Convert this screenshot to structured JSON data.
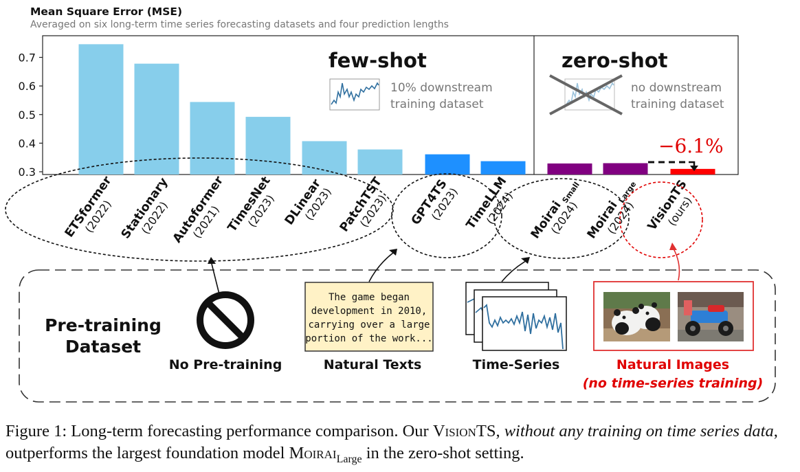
{
  "chart_data": {
    "type": "bar",
    "title": "Mean Square Error (MSE)",
    "subtitle": "Averaged on six long-term time series forecasting datasets and four prediction lengths",
    "ylim": [
      0.3,
      0.75
    ],
    "yticks": [
      "0.3",
      "0.4",
      "0.5",
      "0.6",
      "0.7"
    ],
    "series": [
      {
        "name": "ETSformer",
        "year": "(2022)",
        "value": 0.746,
        "group": "few-shot",
        "color": "#87ceeb"
      },
      {
        "name": "Stationary",
        "year": "(2022)",
        "value": 0.678,
        "group": "few-shot",
        "color": "#87ceeb"
      },
      {
        "name": "Autoformer",
        "year": "(2021)",
        "value": 0.544,
        "group": "few-shot",
        "color": "#87ceeb"
      },
      {
        "name": "TimesNet",
        "year": "(2023)",
        "value": 0.492,
        "group": "few-shot",
        "color": "#87ceeb"
      },
      {
        "name": "DLinear",
        "year": "(2023)",
        "value": 0.407,
        "group": "few-shot",
        "color": "#87ceeb"
      },
      {
        "name": "PatchTST",
        "year": "(2023)",
        "value": 0.378,
        "group": "few-shot",
        "color": "#87ceeb"
      },
      {
        "name": "GPT4TS",
        "year": "(2023)",
        "value": 0.361,
        "group": "few-shot",
        "color": "#1e90ff"
      },
      {
        "name": "TimeLLM",
        "year": "(2024)",
        "value": 0.337,
        "group": "few-shot",
        "color": "#1e90ff"
      },
      {
        "name": "Moirai",
        "sub": "Small",
        "year": "(2024)",
        "value": 0.329,
        "group": "zero-shot",
        "color": "#800080"
      },
      {
        "name": "Moirai",
        "sub": "Large",
        "year": "(2024)",
        "value": 0.33,
        "group": "zero-shot",
        "color": "#800080"
      },
      {
        "name": "VisionTS",
        "year": "(ours)",
        "value": 0.31,
        "group": "zero-shot",
        "color": "#ff0000"
      }
    ],
    "panels": {
      "few_shot_title": "few-shot",
      "few_shot_desc": [
        "10% downstream",
        "training dataset"
      ],
      "zero_shot_title": "zero-shot",
      "zero_shot_desc": [
        "no downstream",
        "training dataset"
      ]
    },
    "improvement": "−6.1%"
  },
  "pretraining": {
    "title_line1": "Pre-training",
    "title_line2": "Dataset",
    "no_pretraining": "No Pre-training",
    "natural_texts": "Natural Texts",
    "text_sample": [
      "The game began",
      "development in 2010,",
      "carrying over a large",
      "portion of the work..."
    ],
    "time_series": "Time-Series",
    "natural_images": "Natural Images",
    "natural_images_note": "(no time-series training)"
  },
  "caption": {
    "prefix": "Figure 1: Long-term forecasting performance comparison. Our ",
    "visionts": "VisionTS",
    "comma": ", ",
    "italic": "without any training on time series data",
    "middle": ", outperforms the largest foundation model ",
    "moirai": "Moirai",
    "large": "Large",
    "suffix": " in the zero-shot setting."
  }
}
